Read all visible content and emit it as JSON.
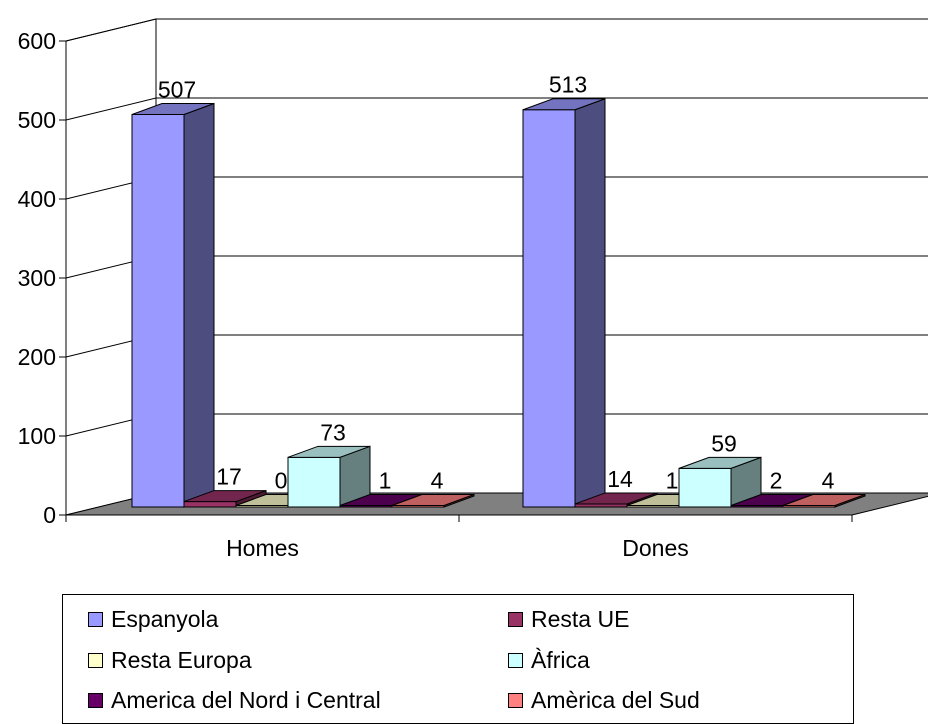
{
  "chart_data": {
    "type": "bar",
    "three_d": true,
    "categories": [
      "Homes",
      "Dones"
    ],
    "series": [
      {
        "name": "Espanyola",
        "values": [
          507,
          513
        ],
        "color": "#9999ff"
      },
      {
        "name": "Resta UE",
        "values": [
          17,
          14
        ],
        "color": "#993366"
      },
      {
        "name": "Resta Europa",
        "values": [
          0,
          1
        ],
        "color": "#ffffcc"
      },
      {
        "name": "Àfrica",
        "values": [
          73,
          59
        ],
        "color": "#ccffff"
      },
      {
        "name": "America del Nord i Central",
        "values": [
          1,
          2
        ],
        "color": "#660066"
      },
      {
        "name": "Amèrica del Sud",
        "values": [
          4,
          4
        ],
        "color": "#ff8080"
      }
    ],
    "y_ticks": [
      "0",
      "100",
      "200",
      "300",
      "400",
      "500",
      "600"
    ],
    "ylim": [
      0,
      600
    ],
    "grid": true,
    "floor_color": "#808080",
    "legend_position": "bottom"
  }
}
